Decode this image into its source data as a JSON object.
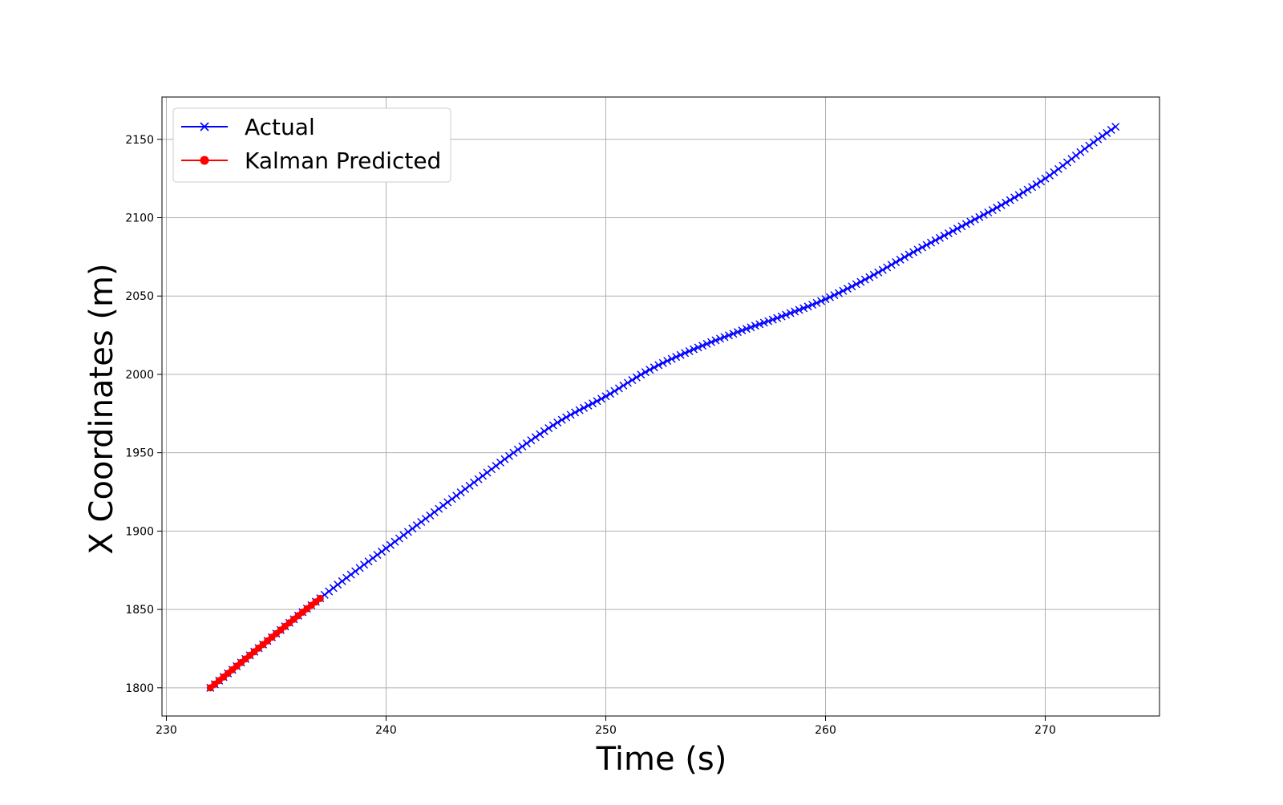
{
  "chart_data": {
    "type": "line",
    "xlabel": "Time (s)",
    "ylabel": "X Coordinates (m)",
    "xlim": [
      229.8,
      275.2
    ],
    "ylim": [
      1782,
      2177
    ],
    "xticks": [
      230,
      240,
      250,
      260,
      270
    ],
    "yticks": [
      1800,
      1850,
      1900,
      1950,
      2000,
      2050,
      2100,
      2150
    ],
    "grid": true,
    "legend_position": "top-left",
    "series": [
      {
        "name": "Actual",
        "color": "#0000ff",
        "marker": "x",
        "x_start": 232.0,
        "x_end": 273.2,
        "x_step": 0.2,
        "x": [
          232,
          234,
          236,
          238,
          240,
          242,
          244,
          246,
          248,
          250,
          252,
          254,
          256,
          258,
          260,
          262,
          264,
          266,
          268,
          270,
          272,
          273.2
        ],
        "y": [
          1800,
          1823,
          1846,
          1868,
          1889,
          1910,
          1931,
          1952,
          1971,
          1986,
          2003,
          2016,
          2027,
          2037,
          2048,
          2062,
          2078,
          2093,
          2108,
          2125,
          2146,
          2158
        ]
      },
      {
        "name": "Kalman Predicted",
        "color": "#ff0000",
        "marker": "o",
        "x_start": 232.0,
        "x_end": 237.0,
        "x_step": 0.2,
        "x": [
          232,
          234,
          236,
          237
        ],
        "y": [
          1800,
          1823,
          1846,
          1857
        ]
      }
    ]
  }
}
